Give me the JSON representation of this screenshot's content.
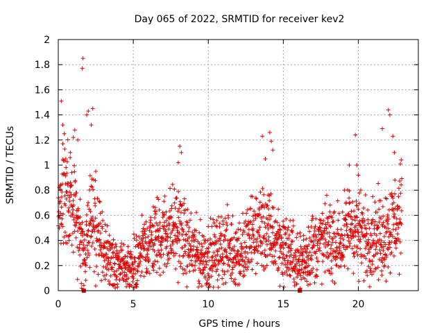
{
  "chart_data": {
    "type": "scatter",
    "title": "Day 065 of 2022, SRMTID for receiver kev2",
    "xlabel": "GPS time / hours",
    "ylabel": "SRMTID / TECUs",
    "xlim": [
      0,
      24
    ],
    "ylim": [
      0,
      2
    ],
    "x_ticks": [
      0,
      5,
      10,
      15,
      20
    ],
    "x_tick_labels": [
      "0",
      "5",
      "10",
      "15",
      "20"
    ],
    "y_ticks": [
      0,
      0.2,
      0.4,
      0.6,
      0.8,
      1,
      1.2,
      1.4,
      1.6,
      1.8,
      2
    ],
    "y_tick_labels": [
      "0",
      "0.2",
      "0.4",
      "0.6",
      "0.8",
      "1",
      "1.2",
      "1.4",
      "1.6",
      "1.8",
      "2"
    ],
    "grid": true,
    "marker": "+",
    "color": "#e00000",
    "trend": [
      {
        "x": 0.0,
        "y": 0.55
      },
      {
        "x": 0.3,
        "y": 0.68
      },
      {
        "x": 0.6,
        "y": 0.75
      },
      {
        "x": 0.9,
        "y": 0.72
      },
      {
        "x": 1.2,
        "y": 0.55
      },
      {
        "x": 1.5,
        "y": 0.35
      },
      {
        "x": 1.8,
        "y": 0.25
      },
      {
        "x": 2.1,
        "y": 0.65
      },
      {
        "x": 2.4,
        "y": 0.55
      },
      {
        "x": 2.7,
        "y": 0.42
      },
      {
        "x": 3.0,
        "y": 0.32
      },
      {
        "x": 3.5,
        "y": 0.24
      },
      {
        "x": 4.0,
        "y": 0.19
      },
      {
        "x": 4.5,
        "y": 0.16
      },
      {
        "x": 5.0,
        "y": 0.2
      },
      {
        "x": 5.5,
        "y": 0.3
      },
      {
        "x": 6.0,
        "y": 0.38
      },
      {
        "x": 6.5,
        "y": 0.42
      },
      {
        "x": 7.0,
        "y": 0.45
      },
      {
        "x": 7.5,
        "y": 0.48
      },
      {
        "x": 8.0,
        "y": 0.5
      },
      {
        "x": 8.5,
        "y": 0.38
      },
      {
        "x": 9.0,
        "y": 0.32
      },
      {
        "x": 9.5,
        "y": 0.27
      },
      {
        "x": 10.0,
        "y": 0.27
      },
      {
        "x": 10.5,
        "y": 0.3
      },
      {
        "x": 11.0,
        "y": 0.36
      },
      {
        "x": 11.5,
        "y": 0.33
      },
      {
        "x": 12.0,
        "y": 0.3
      },
      {
        "x": 12.5,
        "y": 0.35
      },
      {
        "x": 13.0,
        "y": 0.45
      },
      {
        "x": 13.5,
        "y": 0.5
      },
      {
        "x": 14.0,
        "y": 0.45
      },
      {
        "x": 14.5,
        "y": 0.4
      },
      {
        "x": 15.0,
        "y": 0.35
      },
      {
        "x": 15.5,
        "y": 0.3
      },
      {
        "x": 16.0,
        "y": 0.2
      },
      {
        "x": 16.5,
        "y": 0.28
      },
      {
        "x": 17.0,
        "y": 0.35
      },
      {
        "x": 17.5,
        "y": 0.38
      },
      {
        "x": 18.0,
        "y": 0.4
      },
      {
        "x": 18.5,
        "y": 0.38
      },
      {
        "x": 19.0,
        "y": 0.4
      },
      {
        "x": 19.5,
        "y": 0.55
      },
      {
        "x": 20.0,
        "y": 0.45
      },
      {
        "x": 20.5,
        "y": 0.42
      },
      {
        "x": 21.0,
        "y": 0.45
      },
      {
        "x": 21.5,
        "y": 0.42
      },
      {
        "x": 22.0,
        "y": 0.5
      },
      {
        "x": 22.5,
        "y": 0.55
      },
      {
        "x": 22.9,
        "y": 0.6
      }
    ],
    "spikes": [
      {
        "x": 0.2,
        "y": 1.51
      },
      {
        "x": 0.3,
        "y": 1.32
      },
      {
        "x": 0.4,
        "y": 1.25
      },
      {
        "x": 0.5,
        "y": 1.05
      },
      {
        "x": 0.8,
        "y": 1.1
      },
      {
        "x": 1.0,
        "y": 1.22
      },
      {
        "x": 1.1,
        "y": 1.28
      },
      {
        "x": 1.3,
        "y": 1.2
      },
      {
        "x": 1.6,
        "y": 1.77
      },
      {
        "x": 1.65,
        "y": 1.85
      },
      {
        "x": 1.9,
        "y": 1.4
      },
      {
        "x": 2.0,
        "y": 1.43
      },
      {
        "x": 2.2,
        "y": 1.32
      },
      {
        "x": 2.3,
        "y": 1.45
      },
      {
        "x": 2.5,
        "y": 0.95
      },
      {
        "x": 8.0,
        "y": 1.02
      },
      {
        "x": 8.1,
        "y": 1.15
      },
      {
        "x": 8.2,
        "y": 1.1
      },
      {
        "x": 13.6,
        "y": 1.23
      },
      {
        "x": 13.8,
        "y": 1.05
      },
      {
        "x": 14.1,
        "y": 1.26
      },
      {
        "x": 14.2,
        "y": 1.19
      },
      {
        "x": 14.3,
        "y": 1.12
      },
      {
        "x": 19.4,
        "y": 1.0
      },
      {
        "x": 19.8,
        "y": 1.24
      },
      {
        "x": 19.9,
        "y": 1.0
      },
      {
        "x": 21.6,
        "y": 1.29
      },
      {
        "x": 22.0,
        "y": 1.44
      },
      {
        "x": 22.1,
        "y": 1.4
      },
      {
        "x": 22.3,
        "y": 1.23
      },
      {
        "x": 22.4,
        "y": 1.1
      },
      {
        "x": 20.0,
        "y": 0.92
      }
    ],
    "gap_markers": [
      {
        "x": 1.7,
        "y": 0.0
      },
      {
        "x": 16.1,
        "y": 0.0
      }
    ]
  }
}
